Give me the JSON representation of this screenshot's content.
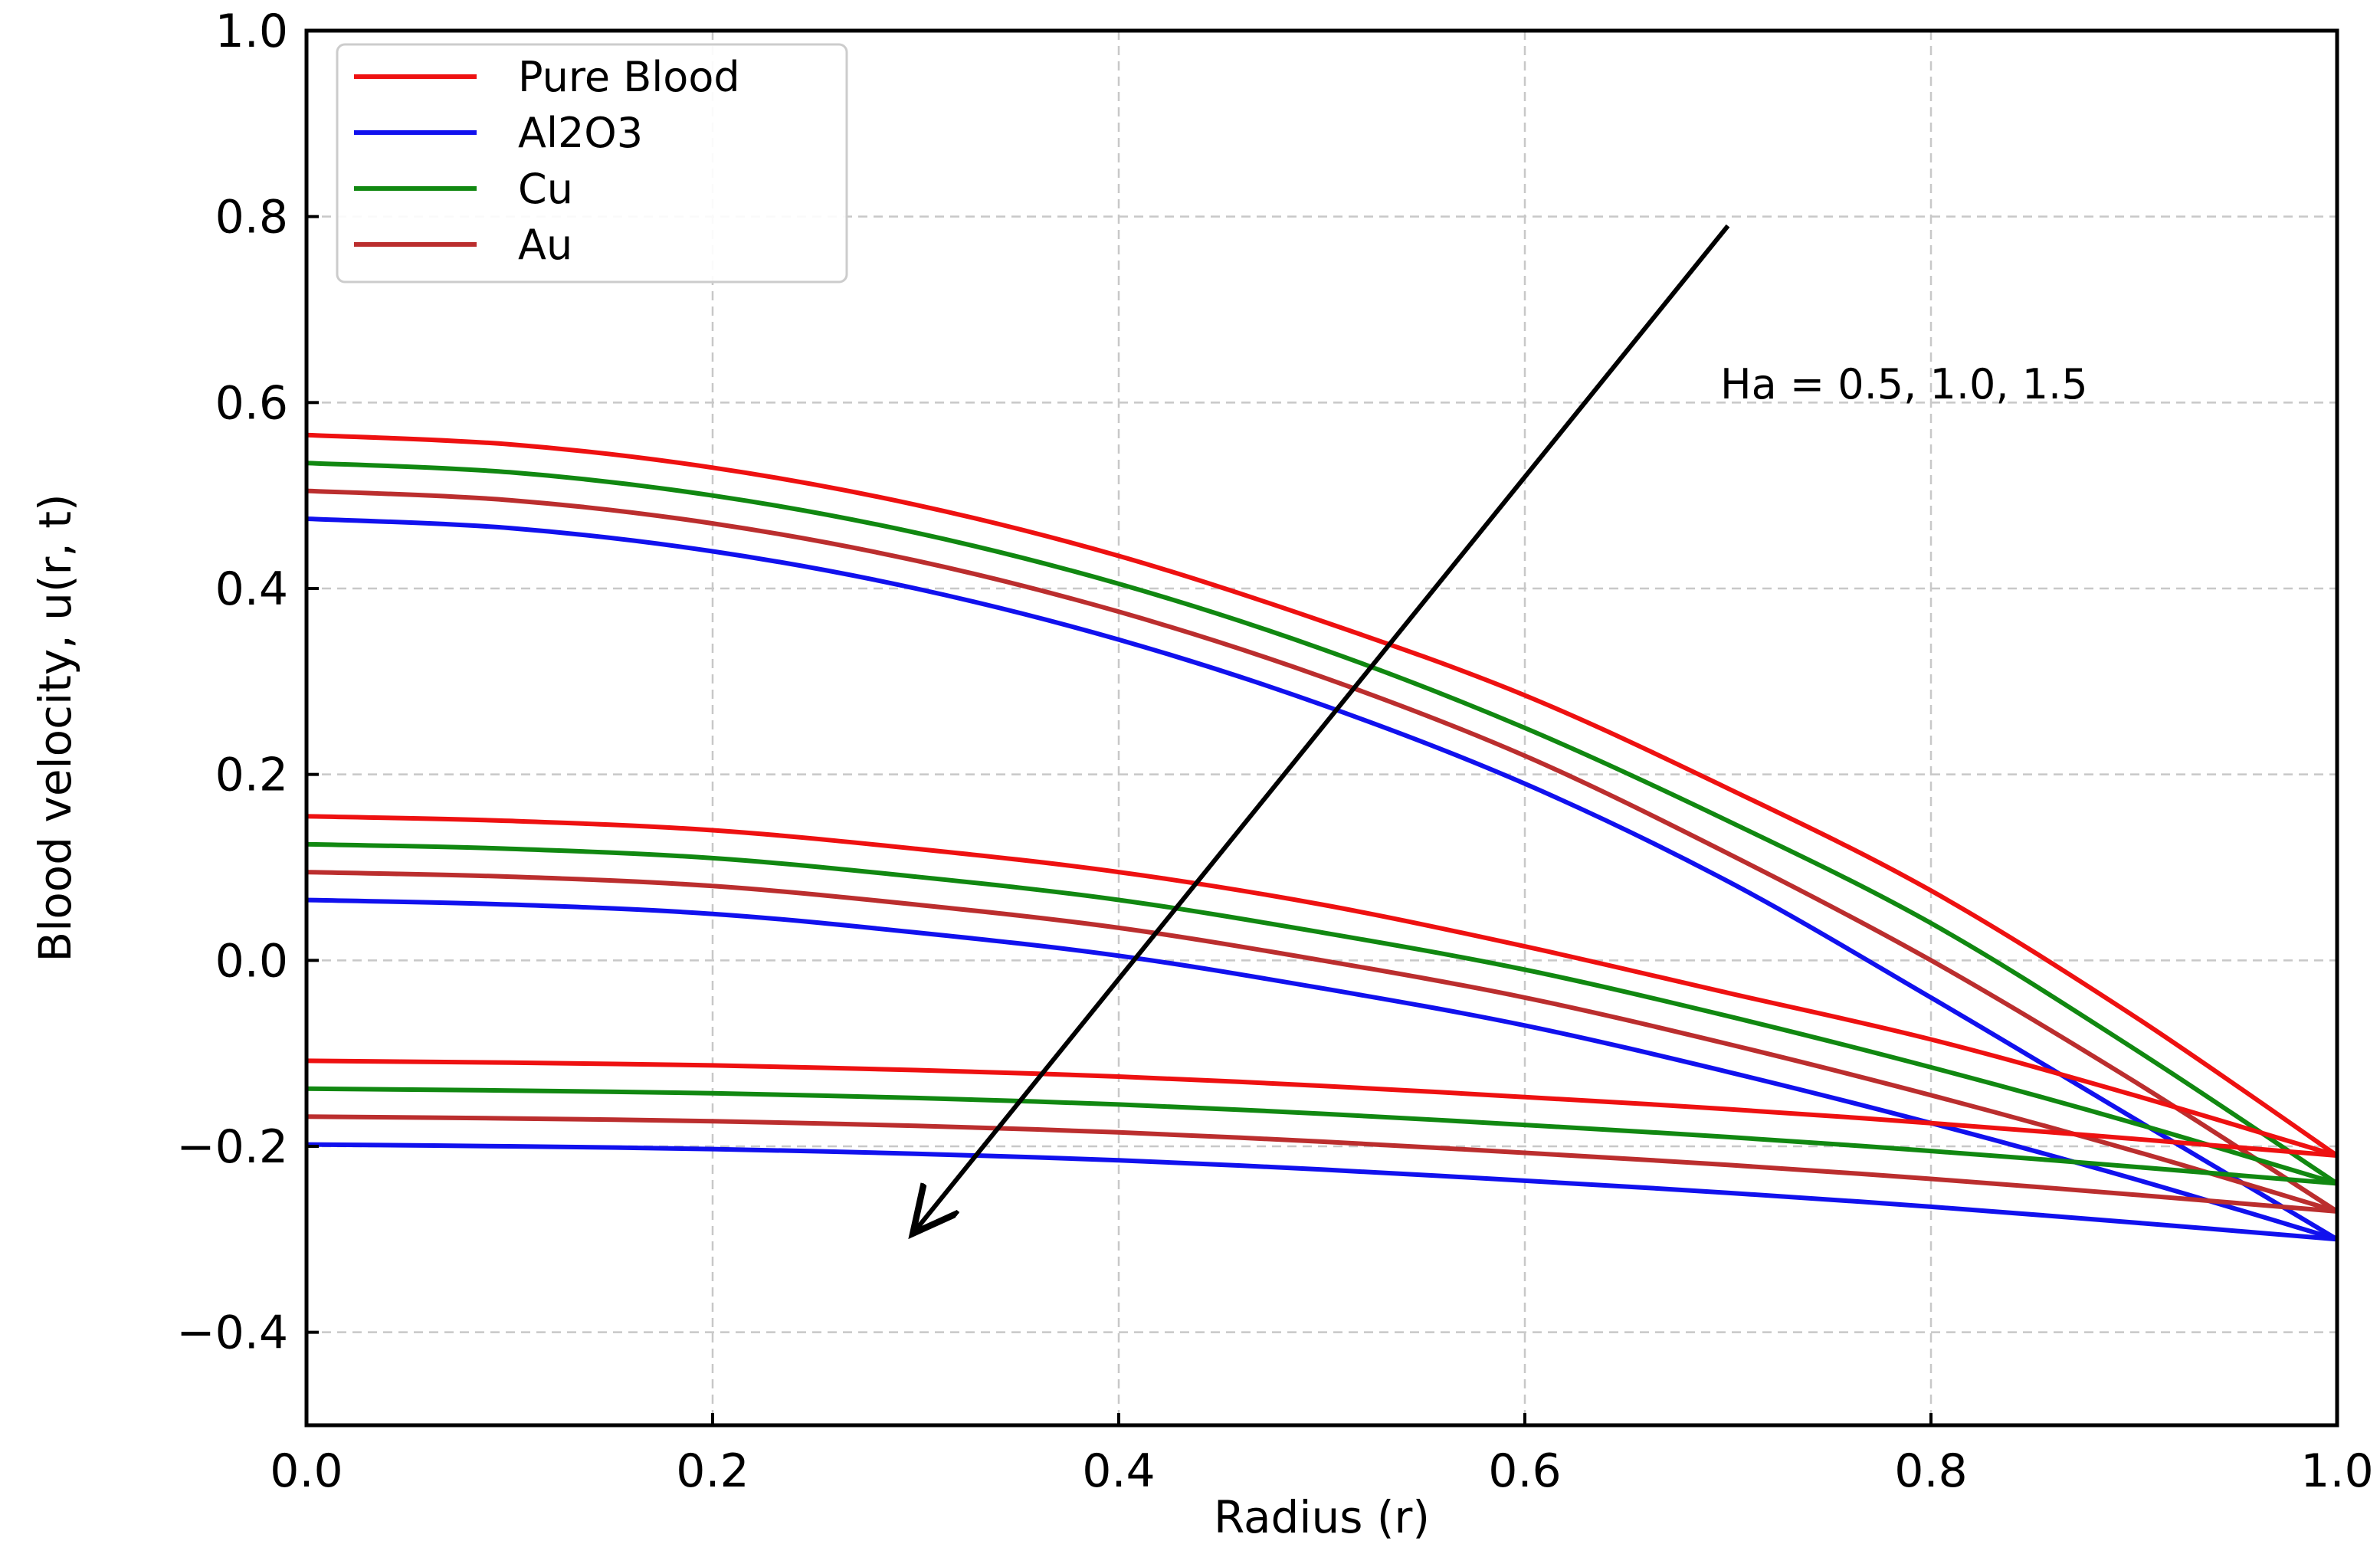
{
  "chart_data": {
    "type": "line",
    "title": "",
    "xlabel": "Radius (r)",
    "ylabel": "Blood velocity, u(r, t)",
    "xlim": [
      0.0,
      1.0
    ],
    "ylim": [
      -0.5,
      1.0
    ],
    "xticks": [
      0.0,
      0.2,
      0.4,
      0.6,
      0.8,
      1.0
    ],
    "xtick_labels": [
      "0.0",
      "0.2",
      "0.4",
      "0.6",
      "0.8",
      "1.0"
    ],
    "yticks": [
      -0.4,
      -0.2,
      0.0,
      0.2,
      0.4,
      0.6,
      0.8,
      1.0
    ],
    "ytick_labels": [
      "−0.4",
      "−0.2",
      "0.0",
      "0.2",
      "0.4",
      "0.6",
      "0.8",
      "1.0"
    ],
    "grid": true,
    "legend_position": "top-left",
    "x": [
      0.0,
      0.1,
      0.2,
      0.3,
      0.4,
      0.5,
      0.6,
      0.7,
      0.8,
      0.9,
      1.0
    ],
    "legend": [
      {
        "name": "Pure Blood",
        "color": "#ee1111"
      },
      {
        "name": "Al2O3",
        "color": "#1111ee"
      },
      {
        "name": "Cu",
        "color": "#118811"
      },
      {
        "name": "Au",
        "color": "#bb2e2e"
      }
    ],
    "series": [
      {
        "name": "Pure Blood",
        "ha": 0.5,
        "color": "#ee1111",
        "values": [
          0.565,
          0.555,
          0.53,
          0.49,
          0.435,
          0.365,
          0.285,
          0.185,
          0.075,
          -0.06,
          -0.21
        ]
      },
      {
        "name": "Cu",
        "ha": 0.5,
        "color": "#118811",
        "values": [
          0.535,
          0.525,
          0.5,
          0.46,
          0.405,
          0.335,
          0.25,
          0.15,
          0.04,
          -0.095,
          -0.24
        ]
      },
      {
        "name": "Au",
        "ha": 0.5,
        "color": "#bb2e2e",
        "values": [
          0.505,
          0.495,
          0.47,
          0.43,
          0.375,
          0.305,
          0.22,
          0.115,
          0.0,
          -0.13,
          -0.27
        ]
      },
      {
        "name": "Al2O3",
        "ha": 0.5,
        "color": "#1111ee",
        "values": [
          0.475,
          0.465,
          0.44,
          0.4,
          0.345,
          0.275,
          0.19,
          0.085,
          -0.04,
          -0.17,
          -0.3
        ]
      },
      {
        "name": "Pure Blood",
        "ha": 1.0,
        "color": "#ee1111",
        "values": [
          0.155,
          0.15,
          0.14,
          0.12,
          0.095,
          0.06,
          0.015,
          -0.035,
          -0.085,
          -0.145,
          -0.21
        ]
      },
      {
        "name": "Cu",
        "ha": 1.0,
        "color": "#118811",
        "values": [
          0.125,
          0.12,
          0.11,
          0.09,
          0.065,
          0.03,
          -0.01,
          -0.06,
          -0.115,
          -0.175,
          -0.24
        ]
      },
      {
        "name": "Au",
        "ha": 1.0,
        "color": "#bb2e2e",
        "values": [
          0.095,
          0.09,
          0.08,
          0.06,
          0.035,
          0.0,
          -0.04,
          -0.09,
          -0.145,
          -0.205,
          -0.27
        ]
      },
      {
        "name": "Al2O3",
        "ha": 1.0,
        "color": "#1111ee",
        "values": [
          0.065,
          0.06,
          0.05,
          0.03,
          0.005,
          -0.03,
          -0.07,
          -0.12,
          -0.175,
          -0.235,
          -0.3
        ]
      },
      {
        "name": "Pure Blood",
        "ha": 1.5,
        "color": "#ee1111",
        "values": [
          -0.108,
          -0.11,
          -0.113,
          -0.118,
          -0.125,
          -0.135,
          -0.147,
          -0.16,
          -0.175,
          -0.192,
          -0.21
        ]
      },
      {
        "name": "Cu",
        "ha": 1.5,
        "color": "#118811",
        "values": [
          -0.138,
          -0.14,
          -0.143,
          -0.148,
          -0.155,
          -0.165,
          -0.177,
          -0.19,
          -0.205,
          -0.222,
          -0.24
        ]
      },
      {
        "name": "Au",
        "ha": 1.5,
        "color": "#bb2e2e",
        "values": [
          -0.168,
          -0.17,
          -0.173,
          -0.178,
          -0.185,
          -0.195,
          -0.207,
          -0.22,
          -0.235,
          -0.252,
          -0.27
        ]
      },
      {
        "name": "Al2O3",
        "ha": 1.5,
        "color": "#1111ee",
        "values": [
          -0.198,
          -0.2,
          -0.203,
          -0.208,
          -0.215,
          -0.225,
          -0.237,
          -0.25,
          -0.265,
          -0.282,
          -0.3
        ]
      }
    ],
    "annotation": {
      "text": "Ha = 0.5, 1.0, 1.5",
      "arrow_from": [
        0.7,
        0.79
      ],
      "arrow_to": [
        0.3,
        -0.29
      ]
    }
  }
}
